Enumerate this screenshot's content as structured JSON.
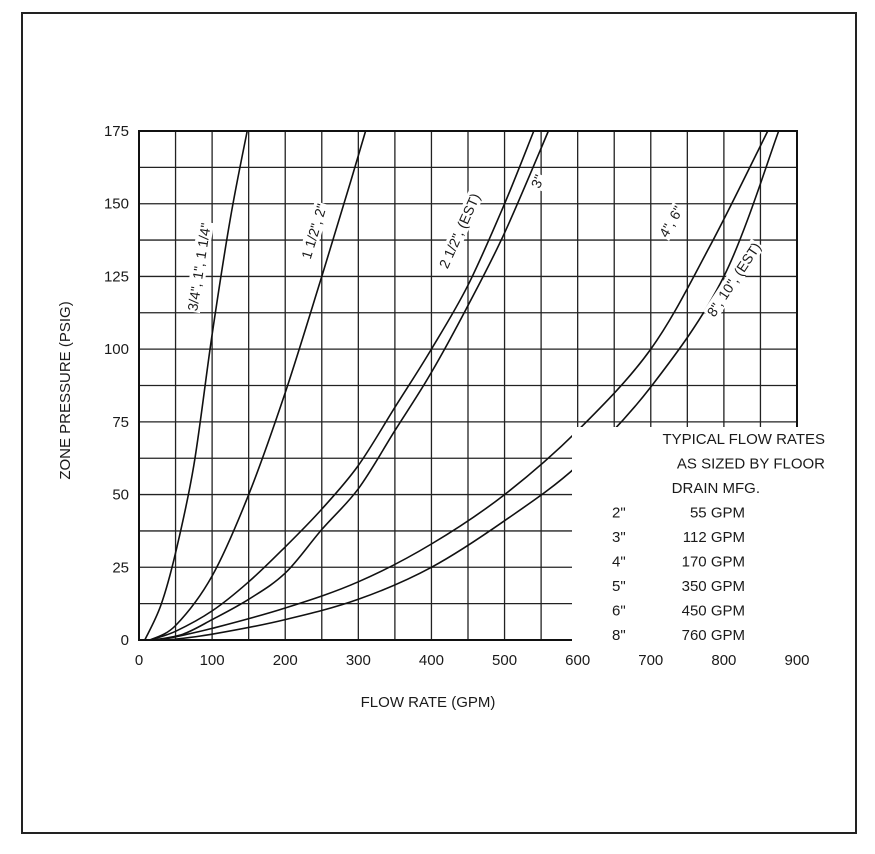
{
  "chart_data": {
    "type": "line",
    "xlabel": "FLOW RATE (GPM)",
    "ylabel": "ZONE PRESSURE (PSIG)",
    "xlim": [
      0,
      900
    ],
    "ylim": [
      0,
      175
    ],
    "x_ticks": [
      0,
      100,
      200,
      300,
      400,
      500,
      600,
      700,
      800,
      900
    ],
    "y_ticks": [
      0,
      25,
      50,
      75,
      100,
      125,
      150,
      175
    ],
    "grid": true,
    "series": [
      {
        "name": "3/4\", 1\", 1 1/4\"",
        "x": [
          8,
          30,
          50,
          75,
          100,
          125,
          148
        ],
        "y": [
          0,
          12,
          30,
          60,
          105,
          145,
          175
        ]
      },
      {
        "name": "1 1/2\", 2\"",
        "x": [
          15,
          50,
          100,
          150,
          200,
          250,
          290,
          310
        ],
        "y": [
          0,
          5,
          22,
          50,
          85,
          125,
          158,
          175
        ]
      },
      {
        "name": "2 1/2\", (EST)",
        "x": [
          15,
          50,
          100,
          150,
          200,
          250,
          300,
          350,
          400,
          450,
          500,
          540
        ],
        "y": [
          0,
          3,
          10,
          20,
          32,
          45,
          60,
          80,
          100,
          122,
          150,
          175
        ]
      },
      {
        "name": "3\"",
        "x": [
          20,
          60,
          100,
          150,
          200,
          250,
          300,
          350,
          400,
          450,
          500,
          560
        ],
        "y": [
          0,
          2,
          7,
          14,
          23,
          38,
          52,
          72,
          92,
          115,
          140,
          175
        ]
      },
      {
        "name": "4\", 6\"",
        "x": [
          30,
          100,
          200,
          300,
          400,
          500,
          600,
          700,
          780,
          860
        ],
        "y": [
          0,
          4,
          11,
          20,
          33,
          50,
          72,
          100,
          135,
          175
        ]
      },
      {
        "name": "8\", 10\", (EST)",
        "x": [
          40,
          100,
          200,
          300,
          400,
          500,
          600,
          700,
          800,
          875
        ],
        "y": [
          0,
          2,
          7,
          14,
          25,
          41,
          60,
          87,
          125,
          175
        ]
      }
    ],
    "curve_labels": [
      "3/4\", 1\", 1 1/4\"",
      "1 1/2\", 2\"",
      "2 1/2\", (EST)",
      "3\"",
      "4\", 6\"",
      "8\", 10\", (EST)"
    ],
    "annotation": {
      "lines": [
        "TYPICAL FLOW RATES",
        "AS SIZED BY FLOOR",
        "DRAIN MFG."
      ],
      "rows": [
        {
          "size": "2\"",
          "flow": "55 GPM",
          "value": 55
        },
        {
          "size": "3\"",
          "flow": "112 GPM",
          "value": 112
        },
        {
          "size": "4\"",
          "flow": "170 GPM",
          "value": 170
        },
        {
          "size": "5\"",
          "flow": "350 GPM",
          "value": 350
        },
        {
          "size": "6\"",
          "flow": "450 GPM",
          "value": 450
        },
        {
          "size": "8\"",
          "flow": "760 GPM",
          "value": 760
        }
      ]
    }
  }
}
